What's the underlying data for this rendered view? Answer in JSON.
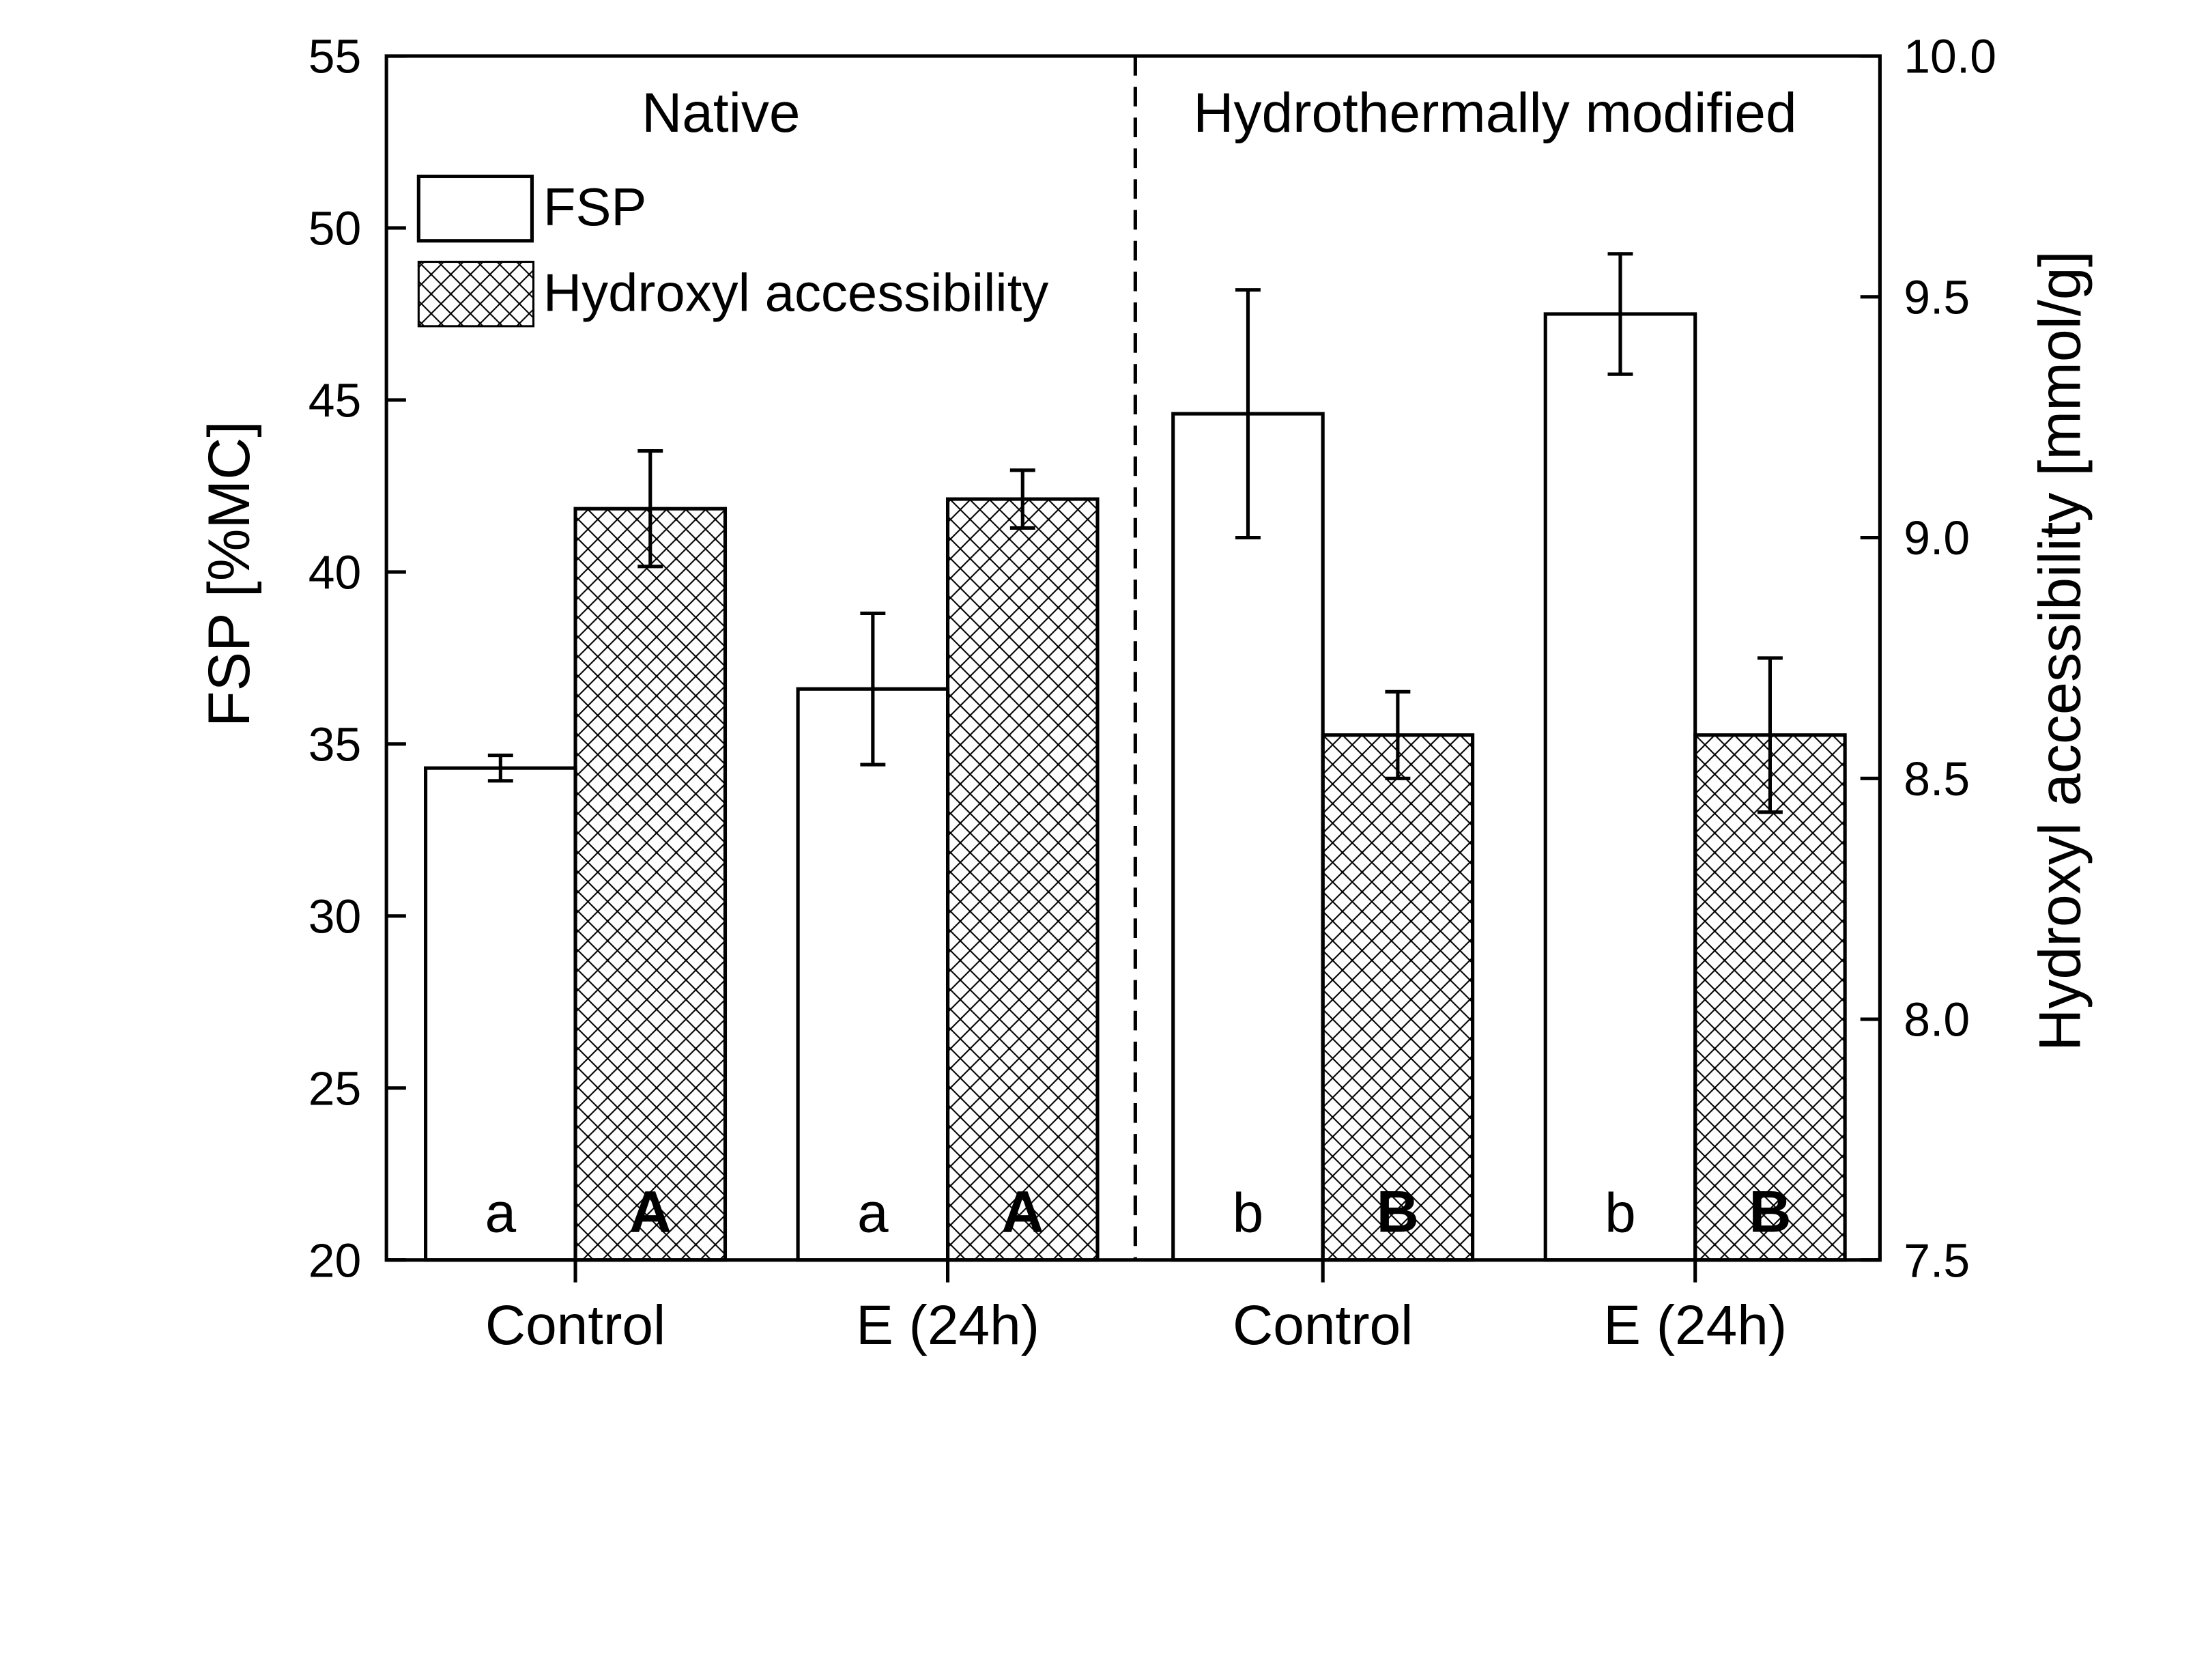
{
  "chart_data": {
    "type": "bar",
    "categories": [
      "Control",
      "E (24h)",
      "Control",
      "E (24h)"
    ],
    "groups": [
      "Native",
      "Hydrothermally modified"
    ],
    "ylabel": "FSP [%MC]",
    "ylabel_right": "Hydroxyl accessibility [mmol/g]",
    "ylim": [
      20,
      55
    ],
    "ylim_right": [
      7.5,
      10.0
    ],
    "yticks": [
      "20",
      "25",
      "30",
      "35",
      "40",
      "45",
      "50",
      "55"
    ],
    "yticks_right": [
      "7.5",
      "8.0",
      "8.5",
      "9.0",
      "9.5",
      "10.0"
    ],
    "legend_position": "top-left",
    "series": [
      {
        "name": "FSP",
        "axis": "left",
        "pattern": "none",
        "values": [
          34.3,
          36.6,
          44.6,
          47.5
        ],
        "errors": [
          0.37,
          2.2,
          3.6,
          1.75
        ],
        "significance": [
          "a",
          "a",
          "b",
          "b"
        ]
      },
      {
        "name": "Hydroxyl accessibility",
        "axis": "right",
        "pattern": "crosshatch",
        "values": [
          9.06,
          9.08,
          8.59,
          8.59
        ],
        "errors": [
          0.12,
          0.06,
          0.09,
          0.16
        ],
        "significance": [
          "A",
          "A",
          "B",
          "B"
        ]
      }
    ]
  }
}
